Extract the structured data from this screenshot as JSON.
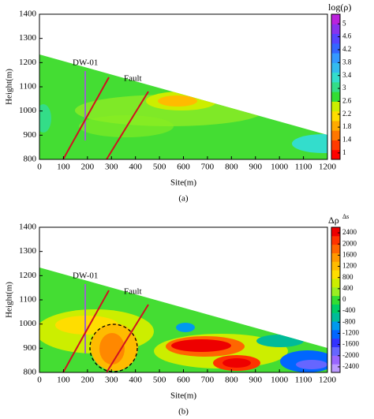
{
  "chart_data": [
    {
      "type": "contour",
      "panel_label": "(a)",
      "xlabel": "Site(m)",
      "ylabel": "Height(m)",
      "colorbar_title": "log(ρ)",
      "annotations": [
        "DW-01",
        "Fault"
      ],
      "xlim": [
        0,
        1200
      ],
      "ylim": [
        800,
        1400
      ],
      "xticks": [
        0,
        100,
        200,
        300,
        400,
        500,
        600,
        700,
        800,
        900,
        1000,
        1100,
        1200
      ],
      "yticks": [
        800,
        900,
        1000,
        1100,
        1200,
        1300,
        1400
      ],
      "clim": [
        0.8,
        5.3
      ],
      "cticks": [
        5,
        4.6,
        4.2,
        3.8,
        3.4,
        3,
        2.6,
        2.2,
        1.8,
        1.4,
        1
      ],
      "colormap": [
        "#ff0000",
        "#ff3a00",
        "#ff7700",
        "#ffaa00",
        "#ffdd00",
        "#ccee00",
        "#33dd33",
        "#33dd88",
        "#33ddcc",
        "#33bbee",
        "#3399ff",
        "#3366ff",
        "#5544ff",
        "#8833ee",
        "#bb22dd"
      ]
    },
    {
      "type": "contour",
      "panel_label": "(b)",
      "xlabel": "Site(m)",
      "ylabel": "Height(m)",
      "colorbar_title": "Δρ",
      "colorbar_title_sup": "Δs",
      "annotations": [
        "DW-01",
        "Fault"
      ],
      "xlim": [
        0,
        1200
      ],
      "ylim": [
        800,
        1400
      ],
      "xticks": [
        0,
        100,
        200,
        300,
        400,
        500,
        600,
        700,
        800,
        900,
        1000,
        1100,
        1200
      ],
      "yticks": [
        800,
        900,
        1000,
        1100,
        1200,
        1300,
        1400
      ],
      "clim": [
        -2600,
        2600
      ],
      "cticks": [
        2400,
        2000,
        1600,
        1200,
        800,
        400,
        0,
        -400,
        -800,
        -1200,
        -1600,
        -2000,
        -2400
      ],
      "colormap": [
        "#bb99ff",
        "#9966ff",
        "#6666ff",
        "#3333ff",
        "#0066ff",
        "#0099ee",
        "#00bb99",
        "#00cc66",
        "#33dd33",
        "#99ee22",
        "#ccee00",
        "#ffdd00",
        "#ffbb00",
        "#ff9900",
        "#ff6600",
        "#ff3300",
        "#ee0000"
      ]
    }
  ]
}
